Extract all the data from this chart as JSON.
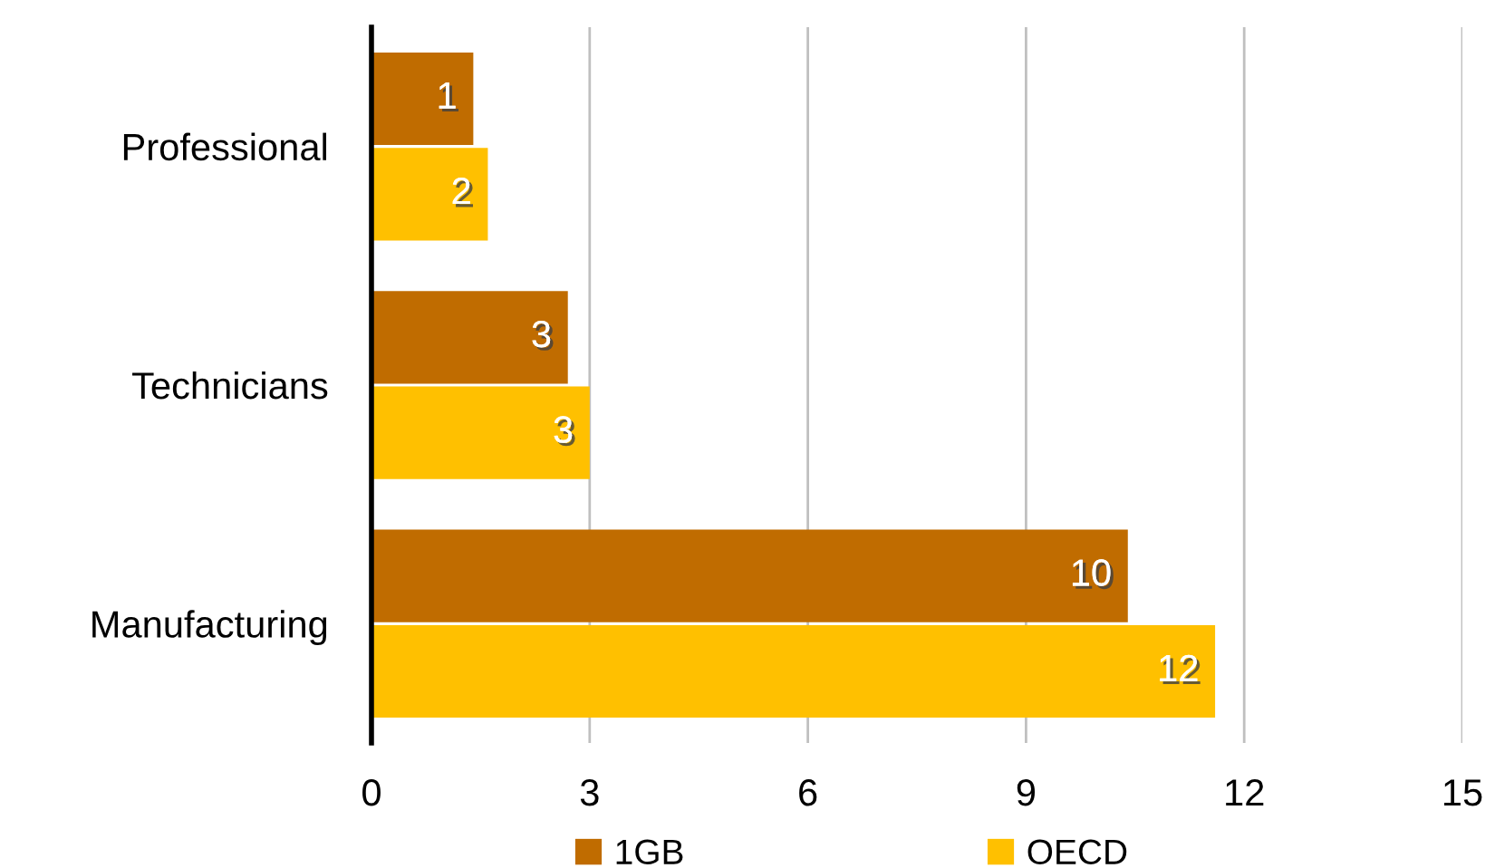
{
  "chart_data": {
    "type": "bar",
    "orientation": "horizontal",
    "categories": [
      "Professional",
      "Technicians",
      "Manufacturing"
    ],
    "series": [
      {
        "name": "1GB",
        "color": "#c06c00",
        "values": [
          1.4,
          2.7,
          10.4
        ],
        "value_labels": [
          "1",
          "3",
          "10"
        ]
      },
      {
        "name": "OECD",
        "color": "#ffc000",
        "values": [
          1.6,
          3.0,
          11.6
        ],
        "value_labels": [
          "2",
          "3",
          "12"
        ]
      }
    ],
    "xlim": [
      0,
      15
    ],
    "xticks": [
      0,
      3,
      6,
      9,
      12,
      15
    ],
    "grid": "x",
    "legend": "bottom"
  }
}
